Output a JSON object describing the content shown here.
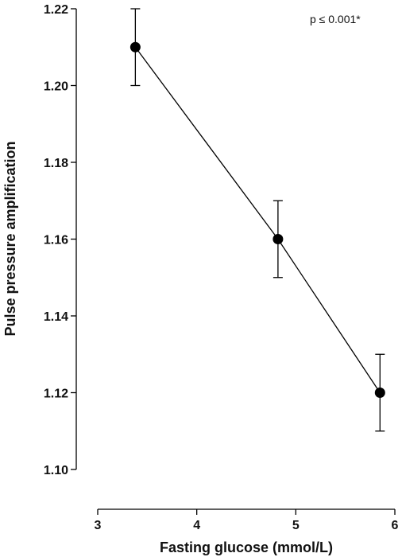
{
  "chart_data": {
    "type": "line",
    "title": "",
    "xlabel": "Fasting glucose (mmol/L)",
    "ylabel": "Pulse pressure amplification",
    "xlim": [
      3,
      6
    ],
    "ylim": [
      1.1,
      1.22
    ],
    "x_ticks": [
      3,
      4,
      5,
      6
    ],
    "y_ticks": [
      1.1,
      1.12,
      1.14,
      1.16,
      1.18,
      1.2,
      1.22
    ],
    "series": [
      {
        "x": [
          3.38,
          4.82,
          5.85
        ],
        "y": [
          1.21,
          1.16,
          1.12
        ],
        "error_low": [
          1.2,
          1.15,
          1.11
        ],
        "error_high": [
          1.22,
          1.17,
          1.13
        ]
      }
    ],
    "annotations": [
      "p ≤ 0.001*"
    ],
    "grid": false,
    "legend": "none",
    "colors": {
      "line": "#000000",
      "marker": "#000000"
    }
  }
}
